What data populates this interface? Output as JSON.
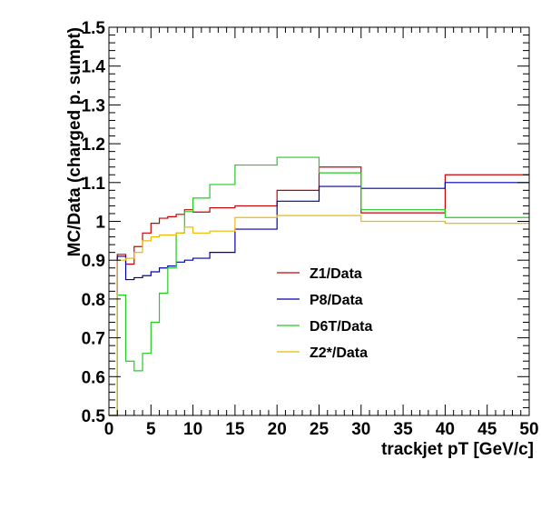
{
  "chart_data": {
    "type": "line",
    "step": true,
    "xlabel": "trackjet pT [GeV/c]",
    "ylabel": "MC/Data (charged p. sumpt)",
    "xlim": [
      0,
      50
    ],
    "ylim": [
      0.5,
      1.5
    ],
    "x_ticks": [
      "0",
      "5",
      "10",
      "15",
      "20",
      "25",
      "30",
      "35",
      "40",
      "45",
      "50"
    ],
    "y_ticks": [
      "0.5",
      "0.6",
      "0.7",
      "0.8",
      "0.9",
      "1",
      "1.1",
      "1.2",
      "1.3",
      "1.4",
      "1.5"
    ],
    "grid": false,
    "legend_position": "center",
    "bin_edges": [
      0,
      1,
      2,
      3,
      4,
      5,
      6,
      7,
      8,
      9,
      10,
      12,
      15,
      20,
      25,
      30,
      40,
      50
    ],
    "series": [
      {
        "name": "Z1/Data",
        "color": "#cc0000",
        "values": [
          0.5,
          0.915,
          0.89,
          0.935,
          0.97,
          0.995,
          1.008,
          1.012,
          1.018,
          1.03,
          1.024,
          1.035,
          1.04,
          1.08,
          1.14,
          1.022,
          1.12
        ]
      },
      {
        "name": "P8/Data",
        "color": "#0000aa",
        "values": [
          0.5,
          0.91,
          0.85,
          0.855,
          0.86,
          0.87,
          0.88,
          0.885,
          0.895,
          0.9,
          0.905,
          0.92,
          0.98,
          1.052,
          1.09,
          1.085,
          1.1
        ]
      },
      {
        "name": "D6T/Data",
        "color": "#22cc22",
        "values": [
          0.5,
          0.81,
          0.64,
          0.615,
          0.66,
          0.74,
          0.815,
          0.88,
          0.97,
          1.025,
          1.06,
          1.095,
          1.145,
          1.165,
          1.125,
          1.03,
          1.01
        ]
      },
      {
        "name": "Z2*/Data",
        "color": "#eebb00",
        "values": [
          0.5,
          0.9,
          0.905,
          0.92,
          0.95,
          0.96,
          0.965,
          0.965,
          0.97,
          0.985,
          0.97,
          0.975,
          1.01,
          1.015,
          1.015,
          1.0,
          0.995
        ]
      }
    ]
  }
}
